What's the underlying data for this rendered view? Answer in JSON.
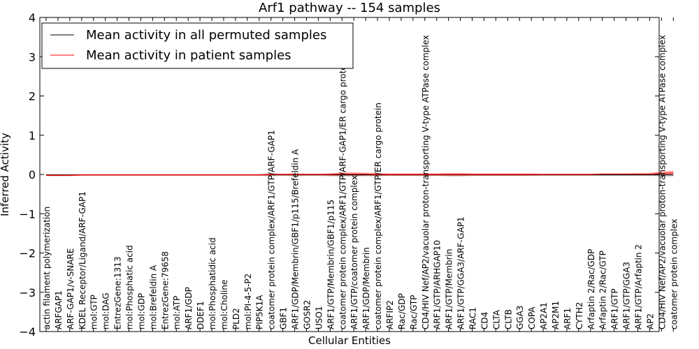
{
  "chart_data": {
    "type": "line",
    "title": "Arf1 pathway -- 154 samples",
    "xlabel": "Cellular Entities",
    "ylabel": "Inferred Activity",
    "ylim": [
      -4,
      4
    ],
    "yticks": [
      {
        "value": 4,
        "label": "4"
      },
      {
        "value": 3,
        "label": "3"
      },
      {
        "value": 2,
        "label": "2"
      },
      {
        "value": 1,
        "label": "1"
      },
      {
        "value": 0,
        "label": "0"
      },
      {
        "value": -1,
        "label": "−1"
      },
      {
        "value": -2,
        "label": "−2"
      },
      {
        "value": -3,
        "label": "−3"
      },
      {
        "value": -4,
        "label": "−4"
      }
    ],
    "grid": false,
    "legend_position": "top-left",
    "categories": [
      "actin filament polymerization",
      "ARFGAP1",
      "ARF-GAP1/v-SNARE",
      "KDEL Receptor/Ligand/ARF-GAP1",
      "mol:GTP",
      "mol:DAG",
      "EntrezGene:1313",
      "mol:Phosphatic acid",
      "mol:GDP",
      "mol:Brefeldin A",
      "EntrezGene:79658",
      "mol:ATP",
      "ARF1/GDP",
      "DDEF1",
      "mol:Phosphatidic acid",
      "mol:Choline",
      "PLD2",
      "mol:PI-4-5-P2",
      "PIP5K1A",
      "coatomer protein complex/ARF1/GTP/ARF-GAP1",
      "GBF1",
      "ARF1/GDP/Membrin/GBF1/p115/Brefeldin A",
      "GOSR2",
      "USO1",
      "ARF1/GTP/Membrin/GBF1/p115",
      "coatomer protein complex/ARF1/GTP/ARF-GAP1/ER cargo protein",
      "ARF1/GTP/coatomer protein complex",
      "ARF1/GDP/Membrin",
      "coatomer protein complex/ARF1/GTP/ER cargo protein",
      "ARFIP2",
      "Rac/GDP",
      "Rac/GTP",
      "CD4/HIV Nef/AP2/vacuolar proton-transporting V-type ATPase complex",
      "ARF1/GTP/ARHGAP10",
      "ARF1/GTP/Membrin",
      "ARF1/GTP/GGA3/ARF-GAP1",
      "RAC1",
      "CD4",
      "CLTA",
      "CLTB",
      "GGA3",
      "COPA",
      "AP2A1",
      "AP2M1",
      "ARF1",
      "CYTH2",
      "Arfaptin 2/Rac/GDP",
      "Arfaptin 2/Rac/GTP",
      "ARF1/GTP",
      "ARF1/GTP/GGA3",
      "ARF1/GTP/Arfaptin 2",
      "AP2",
      "CD4/HIV Nef/AP2/vacuolar proton-transporting V-type ATPase complex",
      "coatomer protein complex"
    ],
    "series": [
      {
        "name": "Mean activity in all permuted samples",
        "color": "#000000",
        "values": [
          -0.01,
          -0.01,
          -0.01,
          -0.01,
          -0.01,
          -0.01,
          -0.01,
          -0.01,
          -0.01,
          -0.01,
          -0.01,
          -0.01,
          -0.01,
          -0.01,
          -0.01,
          -0.01,
          -0.01,
          -0.01,
          -0.01,
          -0.01,
          -0.01,
          -0.01,
          -0.01,
          -0.01,
          -0.01,
          -0.01,
          -0.01,
          -0.01,
          -0.01,
          -0.01,
          -0.01,
          -0.01,
          -0.01,
          -0.01,
          -0.01,
          -0.01,
          -0.01,
          -0.01,
          -0.01,
          -0.01,
          -0.01,
          -0.01,
          -0.01,
          -0.01,
          -0.01,
          -0.01,
          -0.01,
          -0.01,
          -0.01,
          -0.01,
          -0.01,
          -0.01,
          -0.01,
          -0.01
        ],
        "band": [
          0.03,
          0.03,
          0.03,
          0.03,
          0.03,
          0.03,
          0.03,
          0.03,
          0.03,
          0.03,
          0.03,
          0.03,
          0.03,
          0.03,
          0.03,
          0.03,
          0.03,
          0.03,
          0.03,
          0.04,
          0.03,
          0.04,
          0.03,
          0.03,
          0.04,
          0.05,
          0.04,
          0.04,
          0.04,
          0.03,
          0.03,
          0.03,
          0.04,
          0.03,
          0.04,
          0.04,
          0.03,
          0.03,
          0.03,
          0.03,
          0.03,
          0.03,
          0.03,
          0.03,
          0.03,
          0.03,
          0.03,
          0.03,
          0.03,
          0.03,
          0.03,
          0.03,
          0.05,
          0.05
        ]
      },
      {
        "name": "Mean activity in patient samples",
        "color": "#ff0000",
        "values": [
          -0.02,
          -0.02,
          -0.02,
          -0.01,
          -0.01,
          -0.01,
          -0.01,
          -0.01,
          -0.01,
          -0.01,
          -0.01,
          -0.01,
          -0.01,
          -0.01,
          -0.01,
          -0.01,
          -0.01,
          -0.01,
          -0.01,
          0.0,
          0.0,
          0.0,
          0.0,
          0.0,
          0.0,
          0.01,
          0.01,
          0.01,
          0.0,
          0.0,
          0.0,
          0.0,
          0.0,
          0.0,
          0.0,
          0.0,
          0.0,
          0.0,
          0.0,
          0.0,
          0.0,
          0.0,
          0.0,
          0.0,
          0.0,
          0.0,
          0.0,
          0.01,
          0.01,
          0.01,
          0.01,
          0.01,
          0.03,
          0.04
        ],
        "band": [
          0.02,
          0.02,
          0.02,
          0.02,
          0.02,
          0.02,
          0.02,
          0.02,
          0.02,
          0.02,
          0.02,
          0.02,
          0.02,
          0.02,
          0.02,
          0.02,
          0.02,
          0.02,
          0.02,
          0.03,
          0.02,
          0.03,
          0.02,
          0.02,
          0.03,
          0.05,
          0.05,
          0.04,
          0.04,
          0.03,
          0.03,
          0.03,
          0.03,
          0.03,
          0.04,
          0.04,
          0.03,
          0.03,
          0.03,
          0.03,
          0.03,
          0.03,
          0.02,
          0.02,
          0.02,
          0.02,
          0.02,
          0.02,
          0.02,
          0.02,
          0.03,
          0.03,
          0.05,
          0.06
        ]
      }
    ]
  }
}
